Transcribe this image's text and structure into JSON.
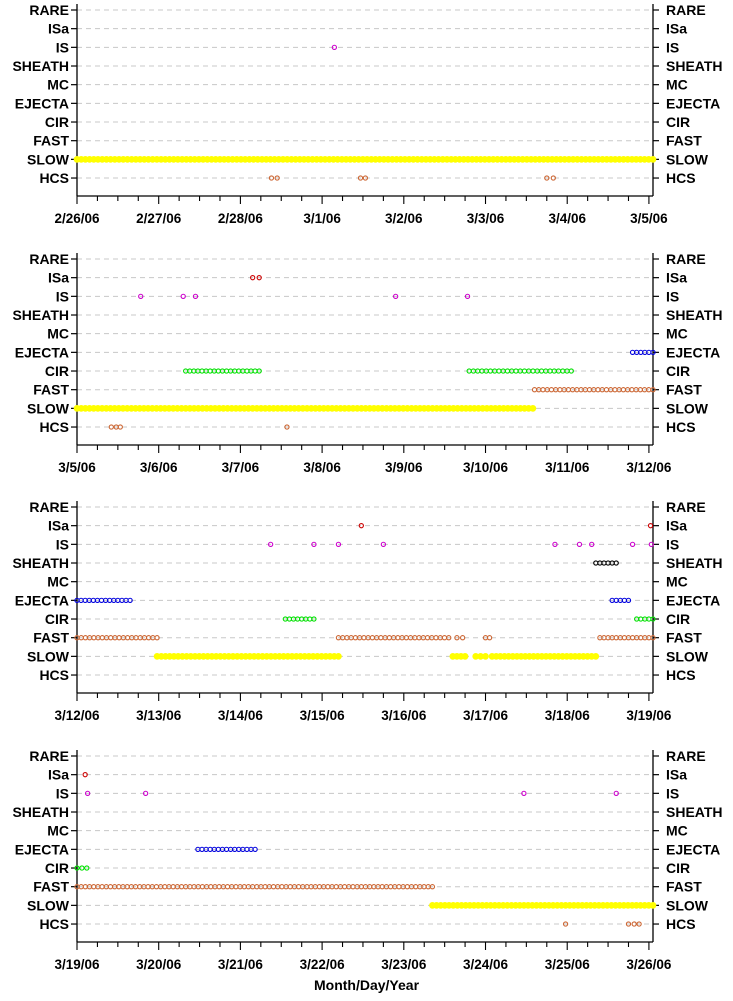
{
  "chart_data": {
    "type": "scatter",
    "categories": [
      "RARE",
      "ISa",
      "IS",
      "SHEATH",
      "MC",
      "EJECTA",
      "CIR",
      "FAST",
      "SLOW",
      "HCS"
    ],
    "xlabel": "Month/Day/Year",
    "colors": {
      "SLOW": "#ffff00",
      "FAST": "#cc6633",
      "CIR": "#00e000",
      "EJECTA": "#0000dd",
      "IS": "#cc00cc",
      "ISa": "#cc0000",
      "HCS": "#cc6633",
      "SHEATH": "#000000"
    },
    "panels": [
      {
        "tick_labels": [
          "2/26/06",
          "2/27/06",
          "2/28/06",
          "3/1/06",
          "3/2/06",
          "3/3/06",
          "3/4/06",
          "3/5/06"
        ],
        "xlim": [
          0,
          7.05
        ],
        "series": [
          {
            "category": "SLOW",
            "segments": [
              [
                0,
                7.05
              ]
            ]
          },
          {
            "category": "IS",
            "points": [
              3.15
            ]
          },
          {
            "category": "HCS",
            "points": [
              2.38,
              2.45,
              3.47,
              3.53,
              5.75,
              5.83
            ]
          }
        ]
      },
      {
        "tick_labels": [
          "3/5/06",
          "3/6/06",
          "3/7/06",
          "3/8/06",
          "3/9/06",
          "3/10/06",
          "3/11/06",
          "3/12/06"
        ],
        "xlim": [
          0,
          7.05
        ],
        "series": [
          {
            "category": "ISa",
            "points": [
              2.15,
              2.23
            ]
          },
          {
            "category": "IS",
            "points": [
              0.78,
              1.3,
              1.45,
              3.9,
              4.78
            ]
          },
          {
            "category": "EJECTA",
            "segments": [
              [
                6.8,
                7.05
              ]
            ]
          },
          {
            "category": "CIR",
            "segments": [
              [
                1.33,
                2.23
              ],
              [
                4.8,
                6.05
              ]
            ]
          },
          {
            "category": "FAST",
            "segments": [
              [
                5.6,
                7.05
              ]
            ]
          },
          {
            "category": "SLOW",
            "segments": [
              [
                0,
                5.58
              ]
            ]
          },
          {
            "category": "HCS",
            "points": [
              0.42,
              0.48,
              0.53,
              2.57
            ]
          }
        ]
      },
      {
        "tick_labels": [
          "3/12/06",
          "3/13/06",
          "3/14/06",
          "3/15/06",
          "3/16/06",
          "3/17/06",
          "3/18/06",
          "3/19/06"
        ],
        "xlim": [
          0,
          7.05
        ],
        "series": [
          {
            "category": "ISa",
            "points": [
              3.48,
              7.02
            ]
          },
          {
            "category": "IS",
            "points": [
              2.37,
              2.9,
              3.2,
              3.75,
              5.85,
              6.15,
              6.3,
              6.8,
              7.03
            ]
          },
          {
            "category": "SHEATH",
            "segments": [
              [
                6.35,
                6.6
              ]
            ]
          },
          {
            "category": "EJECTA",
            "segments": [
              [
                0,
                0.65
              ],
              [
                6.55,
                6.75
              ]
            ]
          },
          {
            "category": "CIR",
            "segments": [
              [
                2.55,
                2.9
              ],
              [
                6.85,
                7.05
              ]
            ]
          },
          {
            "category": "FAST",
            "segments": [
              [
                0,
                0.98
              ],
              [
                3.2,
                4.55
              ],
              [
                6.4,
                7.05
              ]
            ],
            "points": [
              4.65,
              4.72,
              5.0,
              5.05
            ]
          },
          {
            "category": "SLOW",
            "segments": [
              [
                0.98,
                3.2
              ],
              [
                4.6,
                4.75
              ],
              [
                4.88,
                5.0
              ],
              [
                5.08,
                6.35
              ]
            ]
          }
        ]
      },
      {
        "tick_labels": [
          "3/19/06",
          "3/20/06",
          "3/21/06",
          "3/22/06",
          "3/23/06",
          "3/24/06",
          "3/25/06",
          "3/26/06"
        ],
        "xlim": [
          0,
          7.05
        ],
        "series": [
          {
            "category": "ISa",
            "points": [
              0.1
            ]
          },
          {
            "category": "IS",
            "points": [
              0.13,
              0.84,
              5.47,
              6.6
            ]
          },
          {
            "category": "EJECTA",
            "segments": [
              [
                1.48,
                2.18
              ]
            ]
          },
          {
            "category": "CIR",
            "segments": [
              [
                0,
                0.12
              ]
            ]
          },
          {
            "category": "FAST",
            "segments": [
              [
                0,
                4.35
              ]
            ]
          },
          {
            "category": "SLOW",
            "segments": [
              [
                4.35,
                7.05
              ]
            ]
          },
          {
            "category": "HCS",
            "points": [
              5.98,
              6.75,
              6.82,
              6.88
            ]
          }
        ]
      }
    ]
  }
}
